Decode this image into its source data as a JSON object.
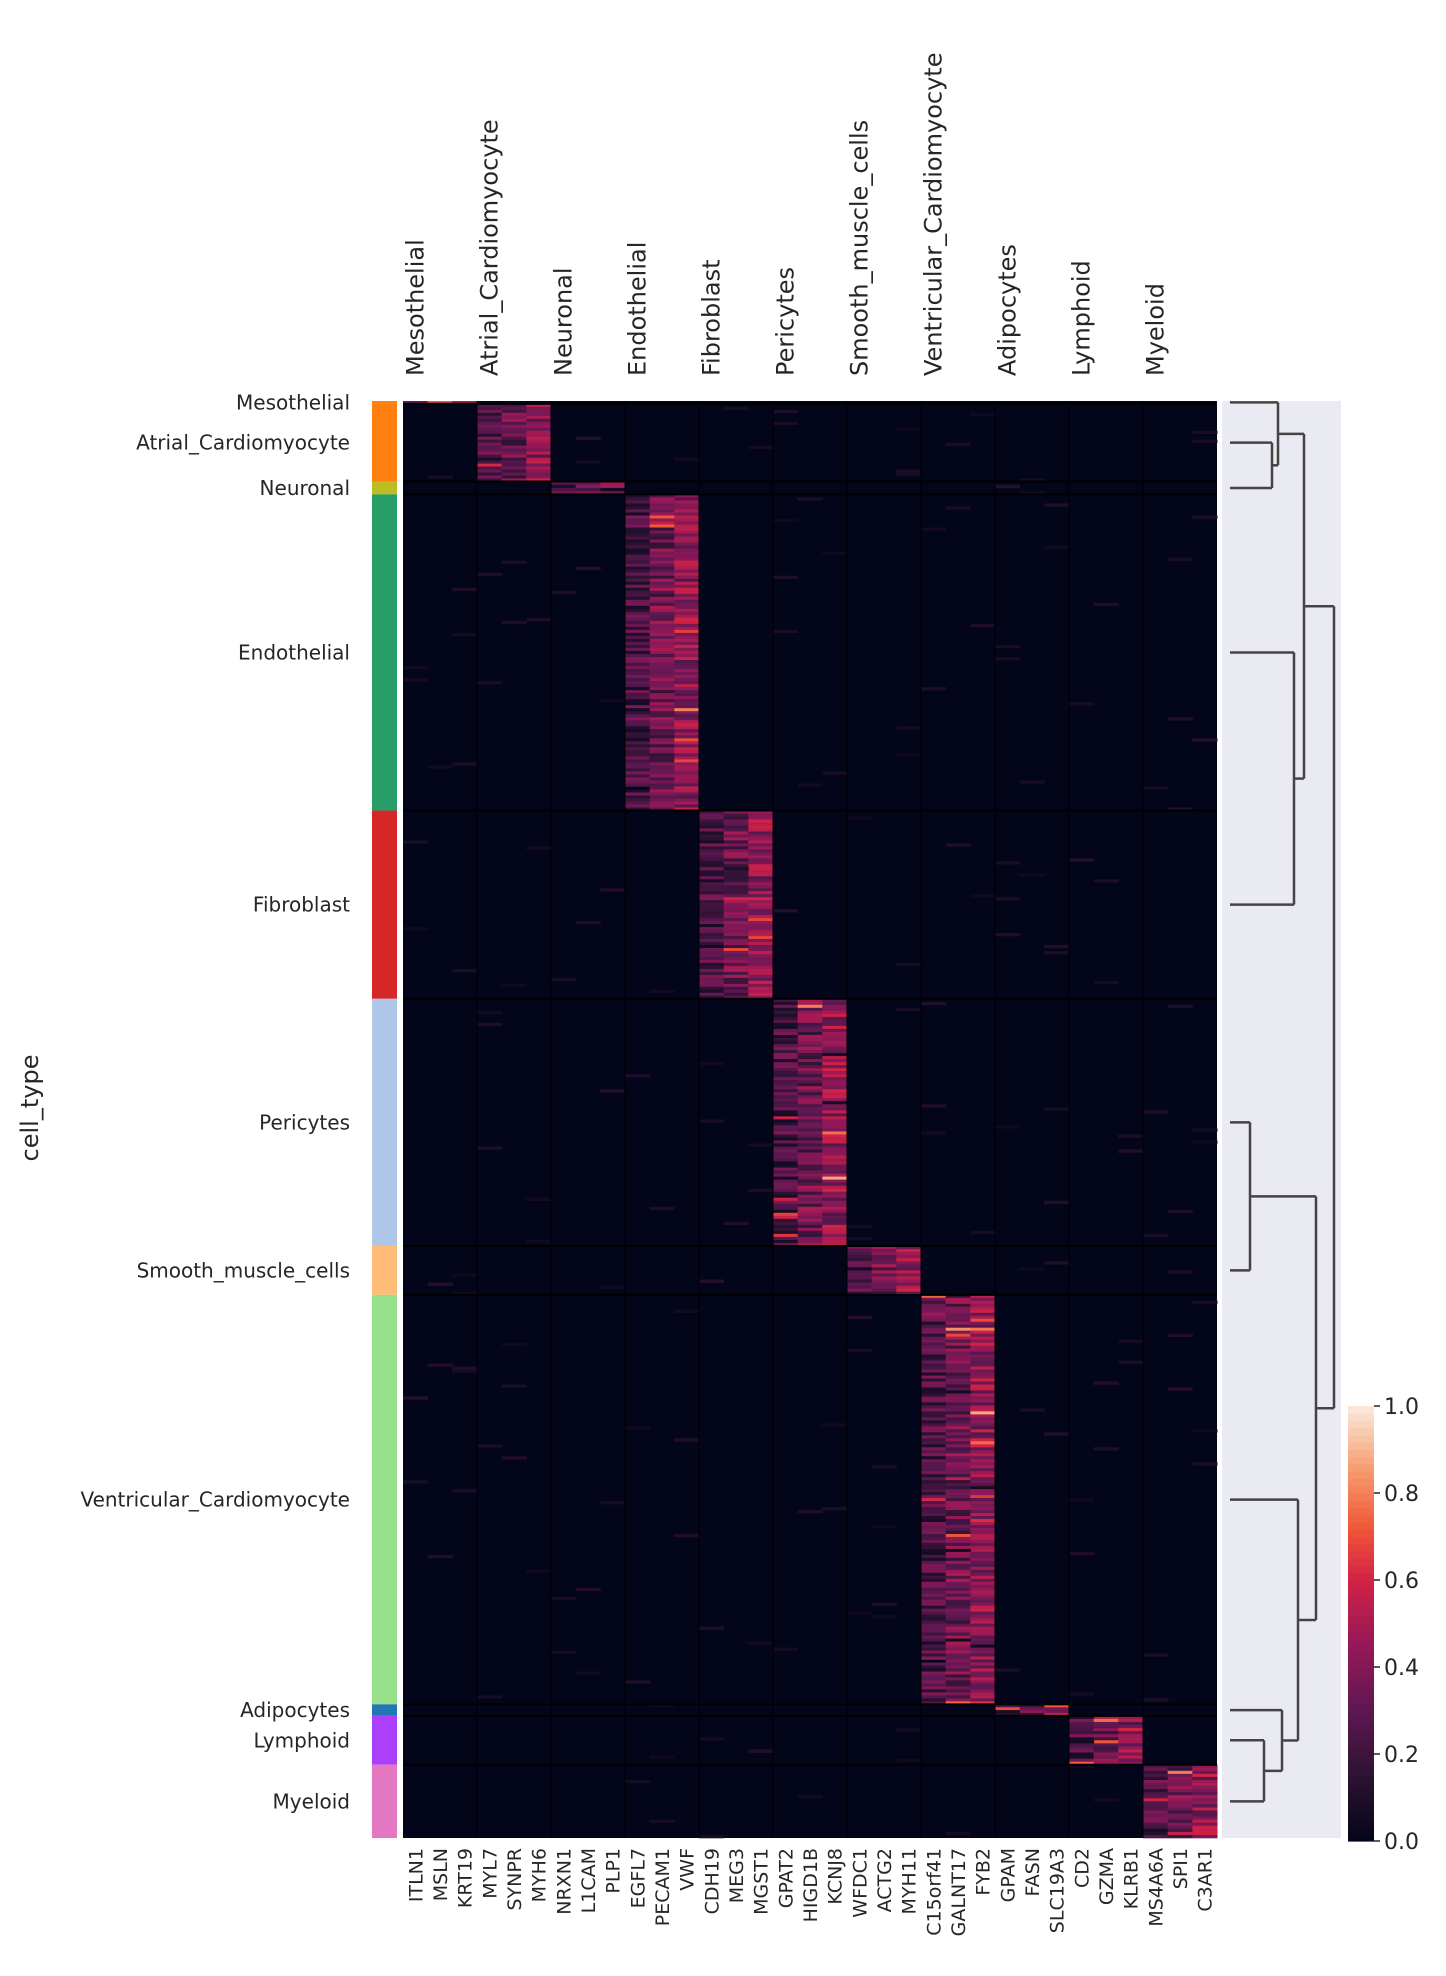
{
  "chart_data": {
    "type": "heatmap",
    "ylabel": "cell_type",
    "group_labels": [
      "Mesothelial",
      "Atrial_Cardiomyocyte",
      "Neuronal",
      "Endothelial",
      "Fibroblast",
      "Pericytes",
      "Smooth_muscle_cells",
      "Ventricular_Cardiomyocyte",
      "Adipocytes",
      "Lymphoid",
      "Myeloid"
    ],
    "genes": [
      "ITLN1",
      "MSLN",
      "KRT19",
      "MYL7",
      "SYNPR",
      "MYH6",
      "NRXN1",
      "L1CAM",
      "PLP1",
      "EGFL7",
      "PECAM1",
      "VWF",
      "CDH19",
      "MEG3",
      "MGST1",
      "GPAT2",
      "HIGD1B",
      "KCNJ8",
      "WFDC1",
      "ACTG2",
      "MYH11",
      "C15orf41",
      "GALNT17",
      "FYB2",
      "GPAM",
      "FASN",
      "SLC19A3",
      "CD2",
      "GZMA",
      "KLRB1",
      "MS4A6A",
      "SPI1",
      "C3AR1"
    ],
    "groups": [
      {
        "name": "Mesothelial",
        "color": "#ff7f0e",
        "label": "Mesothelial",
        "marker_genes": [
          0,
          1,
          2
        ],
        "cell_fraction": 0.002
      },
      {
        "name": "Atrial_Cardiomyocyte",
        "color": "#ff7f0e",
        "label": "Atrial_Cardiomyocyte",
        "marker_genes": [
          3,
          4,
          5
        ],
        "cell_fraction": 0.054
      },
      {
        "name": "Neuronal",
        "color": "#bcbd22",
        "label": "Neuronal",
        "marker_genes": [
          6,
          7,
          8
        ],
        "cell_fraction": 0.009
      },
      {
        "name": "Endothelial",
        "color": "#279e68",
        "label": "Endothelial",
        "marker_genes": [
          9,
          10,
          11
        ],
        "cell_fraction": 0.22
      },
      {
        "name": "Fibroblast",
        "color": "#d62728",
        "label": "Fibroblast",
        "marker_genes": [
          12,
          13,
          14
        ],
        "cell_fraction": 0.131
      },
      {
        "name": "Pericytes",
        "color": "#aec7e8",
        "label": "Pericytes",
        "marker_genes": [
          15,
          16,
          17
        ],
        "cell_fraction": 0.172
      },
      {
        "name": "Smooth_muscle_cells",
        "color": "#ffbb78",
        "label": "Smooth_muscle_cells",
        "marker_genes": [
          18,
          19,
          20
        ],
        "cell_fraction": 0.034
      },
      {
        "name": "Ventricular_Cardiomyocyte",
        "color": "#98df8a",
        "label": "Ventricular_Cardiomyocyte",
        "marker_genes": [
          21,
          22,
          23
        ],
        "cell_fraction": 0.285
      },
      {
        "name": "Adipocytes",
        "color": "#1f77b4",
        "label": "Adipocytes",
        "marker_genes": [
          24,
          25,
          26
        ],
        "cell_fraction": 0.008
      },
      {
        "name": "Lymphoid",
        "color": "#aa40fc",
        "label": "Lymphoid",
        "marker_genes": [
          27,
          28,
          29
        ],
        "cell_fraction": 0.034
      },
      {
        "name": "Myeloid",
        "color": "#e377c2",
        "label": "Myeloid",
        "marker_genes": [
          30,
          31,
          32
        ],
        "cell_fraction": 0.051
      }
    ],
    "colorbar": {
      "min": 0.0,
      "max": 1.0,
      "ticks": [
        "0.0",
        "0.2",
        "0.4",
        "0.6",
        "0.8",
        "1.0"
      ],
      "colormap": "rocket"
    },
    "dendrogram": {
      "order": [
        "Mesothelial",
        "Atrial_Cardiomyocyte",
        "Neuronal",
        "Endothelial",
        "Fibroblast",
        "Pericytes",
        "Smooth_muscle_cells",
        "Ventricular_Cardiomyocyte",
        "Adipocytes",
        "Lymphoid",
        "Myeloid"
      ]
    }
  }
}
